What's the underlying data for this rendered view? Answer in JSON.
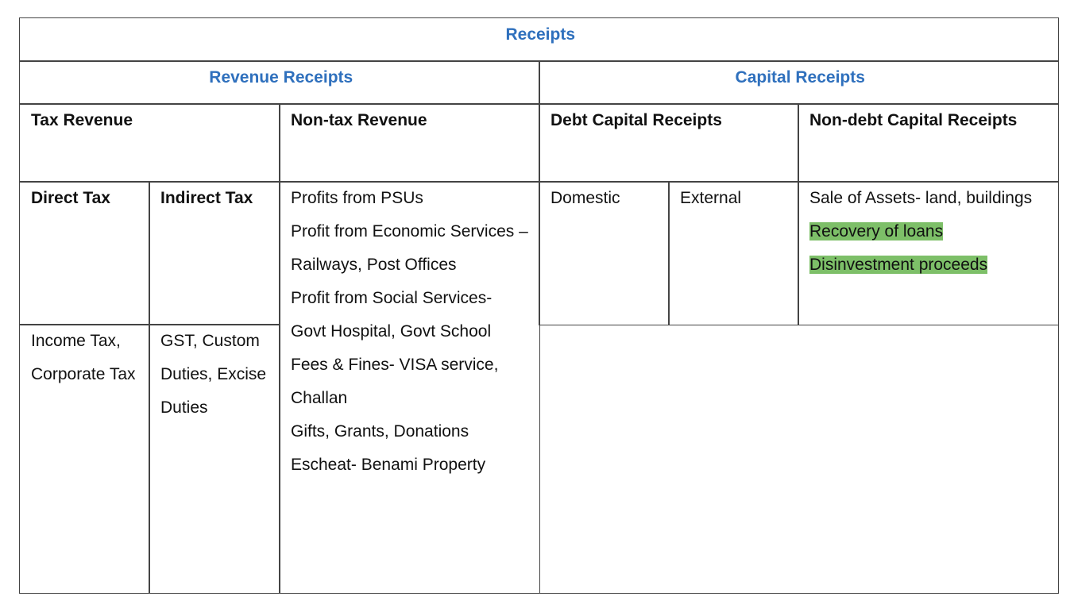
{
  "table": {
    "title": "Receipts",
    "groups": [
      {
        "label": "Revenue Receipts",
        "sections": [
          {
            "label": "Tax Revenue",
            "subsections": [
              {
                "label": "Direct Tax",
                "items": "Income Tax, Corporate Tax"
              },
              {
                "label": "Indirect Tax",
                "items": "GST, Custom Duties, Excise Duties"
              }
            ]
          },
          {
            "label": "Non-tax Revenue",
            "items": [
              "Profits from PSUs",
              "Profit from Economic Services – Railways, Post Offices",
              "Profit from Social Services- Govt Hospital, Govt School",
              "Fees & Fines- VISA service, Challan",
              "Gifts, Grants, Donations",
              "Escheat- Benami Property"
            ]
          }
        ]
      },
      {
        "label": "Capital Receipts",
        "sections": [
          {
            "label": "Debt Capital Receipts",
            "subsections": [
              {
                "label": "Domestic"
              },
              {
                "label": "External"
              }
            ]
          },
          {
            "label": "Non-debt Capital Receipts",
            "items": [
              {
                "text": "Sale of Assets- land, buildings",
                "highlight": false
              },
              {
                "text": "Recovery of loans",
                "highlight": true
              },
              {
                "text": "Disinvestment proceeds",
                "highlight": true
              }
            ]
          }
        ]
      }
    ]
  }
}
